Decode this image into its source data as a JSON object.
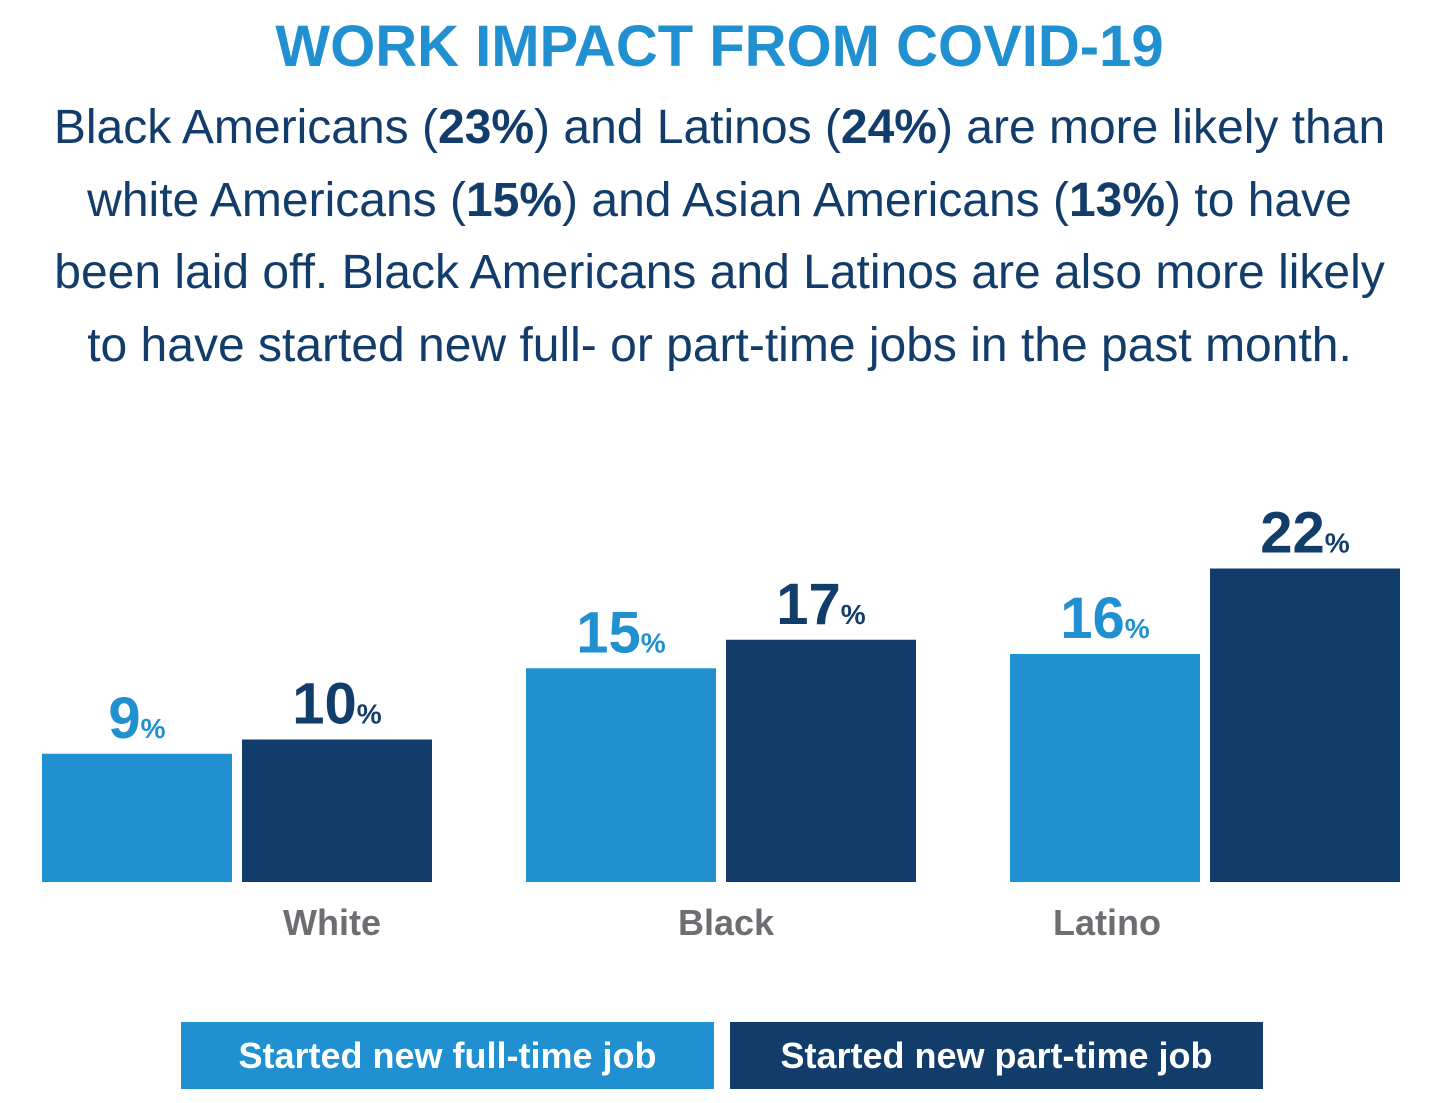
{
  "title": "WORK IMPACT FROM COVID-19",
  "subtitle_parts": [
    "Black Americans (",
    "23%",
    ") and Latinos (",
    "24%",
    ") are more likely than white Americans (",
    "15%",
    ") and Asian Americans (",
    "13%",
    ") to have been laid off. Black Americans and Latinos are also more likely to have started new full- or part-time jobs in the past month."
  ],
  "colors": {
    "full_time": "#2090d0",
    "part_time": "#123d6b",
    "category_label": "#6d6e71",
    "title": "#2090d0"
  },
  "chart_data": {
    "type": "bar",
    "categories": [
      "White",
      "Black",
      "Latino"
    ],
    "series": [
      {
        "name": "Started new full-time job",
        "values": [
          9,
          15,
          16
        ]
      },
      {
        "name": "Started new part-time job",
        "values": [
          10,
          17,
          22
        ]
      }
    ],
    "value_suffix": "%",
    "legend_position": "bottom",
    "grid": false
  }
}
